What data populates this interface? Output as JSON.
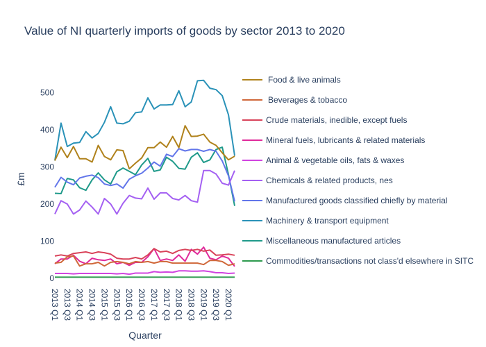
{
  "chart_data": {
    "type": "line",
    "title": "Value of NI quarterly imports of goods by sector 2013 to 2020",
    "xlabel": "Quarter",
    "ylabel": "£m",
    "ylim": [
      0,
      560
    ],
    "yticks": [
      0,
      100,
      200,
      300,
      400,
      500
    ],
    "xtick_labels": [
      "2013 Q1",
      "2013 Q3",
      "2014 Q1",
      "2014 Q3",
      "2015 Q1",
      "2015 Q3",
      "2016 Q1",
      "2016 Q3",
      "2017 Q1",
      "2017 Q3",
      "2018 Q1",
      "2018 Q3",
      "2019 Q1",
      "2019 Q3",
      "2020 Q1"
    ],
    "x": [
      "2013 Q1",
      "2013 Q2",
      "2013 Q3",
      "2013 Q4",
      "2014 Q1",
      "2014 Q2",
      "2014 Q3",
      "2014 Q4",
      "2015 Q1",
      "2015 Q2",
      "2015 Q3",
      "2015 Q4",
      "2016 Q1",
      "2016 Q2",
      "2016 Q3",
      "2016 Q4",
      "2017 Q1",
      "2017 Q2",
      "2017 Q3",
      "2017 Q4",
      "2018 Q1",
      "2018 Q2",
      "2018 Q3",
      "2018 Q4",
      "2019 Q1",
      "2019 Q2",
      "2019 Q3",
      "2019 Q4",
      "2020 Q1",
      "2020 Q2"
    ],
    "grid": false,
    "legend_position": "right",
    "series": [
      {
        "name": "Food & live animals",
        "color": "#b0821c",
        "values": [
          317,
          353,
          325,
          355,
          322,
          322,
          313,
          358,
          328,
          319,
          346,
          344,
          295,
          310,
          324,
          352,
          352,
          367,
          353,
          382,
          352,
          411,
          382,
          383,
          388,
          367,
          358,
          338,
          319,
          329
        ]
      },
      {
        "name": "Beverages & tobacco",
        "color": "#d0683a",
        "values": [
          41,
          43,
          58,
          60,
          33,
          39,
          39,
          43,
          33,
          43,
          45,
          43,
          39,
          45,
          43,
          45,
          41,
          45,
          45,
          41,
          41,
          41,
          41,
          41,
          37,
          48,
          48,
          45,
          35,
          39
        ]
      },
      {
        "name": "Crude materials, inedible, except fuels",
        "color": "#d9435a",
        "values": [
          60,
          63,
          60,
          67,
          69,
          71,
          67,
          71,
          69,
          65,
          54,
          52,
          52,
          56,
          52,
          63,
          80,
          71,
          73,
          67,
          75,
          78,
          75,
          78,
          73,
          76,
          62,
          63,
          65,
          62
        ]
      },
      {
        "name": "Mineral fuels, lubricants & related materials",
        "color": "#e02a9a",
        "values": [
          39,
          52,
          52,
          62,
          46,
          39,
          54,
          50,
          48,
          52,
          39,
          43,
          35,
          43,
          43,
          58,
          80,
          48,
          52,
          48,
          63,
          46,
          78,
          65,
          84,
          54,
          50,
          60,
          54,
          32
        ]
      },
      {
        "name": "Animal & vegetable oils, fats & waxes",
        "color": "#d045e0",
        "values": [
          13,
          13,
          13,
          12,
          13,
          13,
          13,
          13,
          13,
          13,
          12,
          13,
          11,
          14,
          14,
          14,
          18,
          16,
          17,
          16,
          20,
          20,
          19,
          19,
          20,
          18,
          15,
          15,
          13,
          14
        ]
      },
      {
        "name": "Chemicals & related products, nes",
        "color": "#a460f2",
        "values": [
          173,
          209,
          200,
          173,
          184,
          208,
          192,
          173,
          215,
          200,
          173,
          202,
          223,
          216,
          214,
          243,
          213,
          230,
          230,
          215,
          211,
          223,
          209,
          205,
          290,
          290,
          281,
          256,
          251,
          290
        ]
      },
      {
        "name": "Manufactured goods classified chiefly by material",
        "color": "#6276ea",
        "values": [
          245,
          272,
          259,
          252,
          270,
          275,
          278,
          271,
          254,
          250,
          254,
          243,
          267,
          276,
          283,
          297,
          313,
          302,
          334,
          328,
          349,
          343,
          347,
          347,
          342,
          347,
          342,
          316,
          276,
          207
        ]
      },
      {
        "name": "Machinery & transport equipment",
        "color": "#2a92b8",
        "values": [
          317,
          418,
          355,
          364,
          366,
          395,
          378,
          390,
          420,
          462,
          418,
          416,
          423,
          446,
          448,
          486,
          456,
          467,
          467,
          468,
          505,
          462,
          475,
          532,
          533,
          512,
          508,
          492,
          440,
          330
        ]
      },
      {
        "name": "Miscellaneous manufactured articles",
        "color": "#1f9a8a",
        "values": [
          229,
          228,
          269,
          265,
          244,
          237,
          265,
          284,
          265,
          254,
          287,
          297,
          288,
          279,
          305,
          323,
          288,
          292,
          326,
          315,
          296,
          294,
          326,
          338,
          312,
          319,
          347,
          353,
          279,
          195
        ]
      },
      {
        "name": "Commodities/transactions not class'd elsewhere in SITC",
        "color": "#2e9a4e",
        "values": [
          3,
          3,
          3,
          3,
          3,
          3,
          3,
          3,
          3,
          3,
          3,
          3,
          3,
          3,
          3,
          3,
          3,
          3,
          3,
          3,
          3,
          3,
          3,
          3,
          3,
          3,
          3,
          3,
          3,
          3
        ]
      }
    ]
  }
}
